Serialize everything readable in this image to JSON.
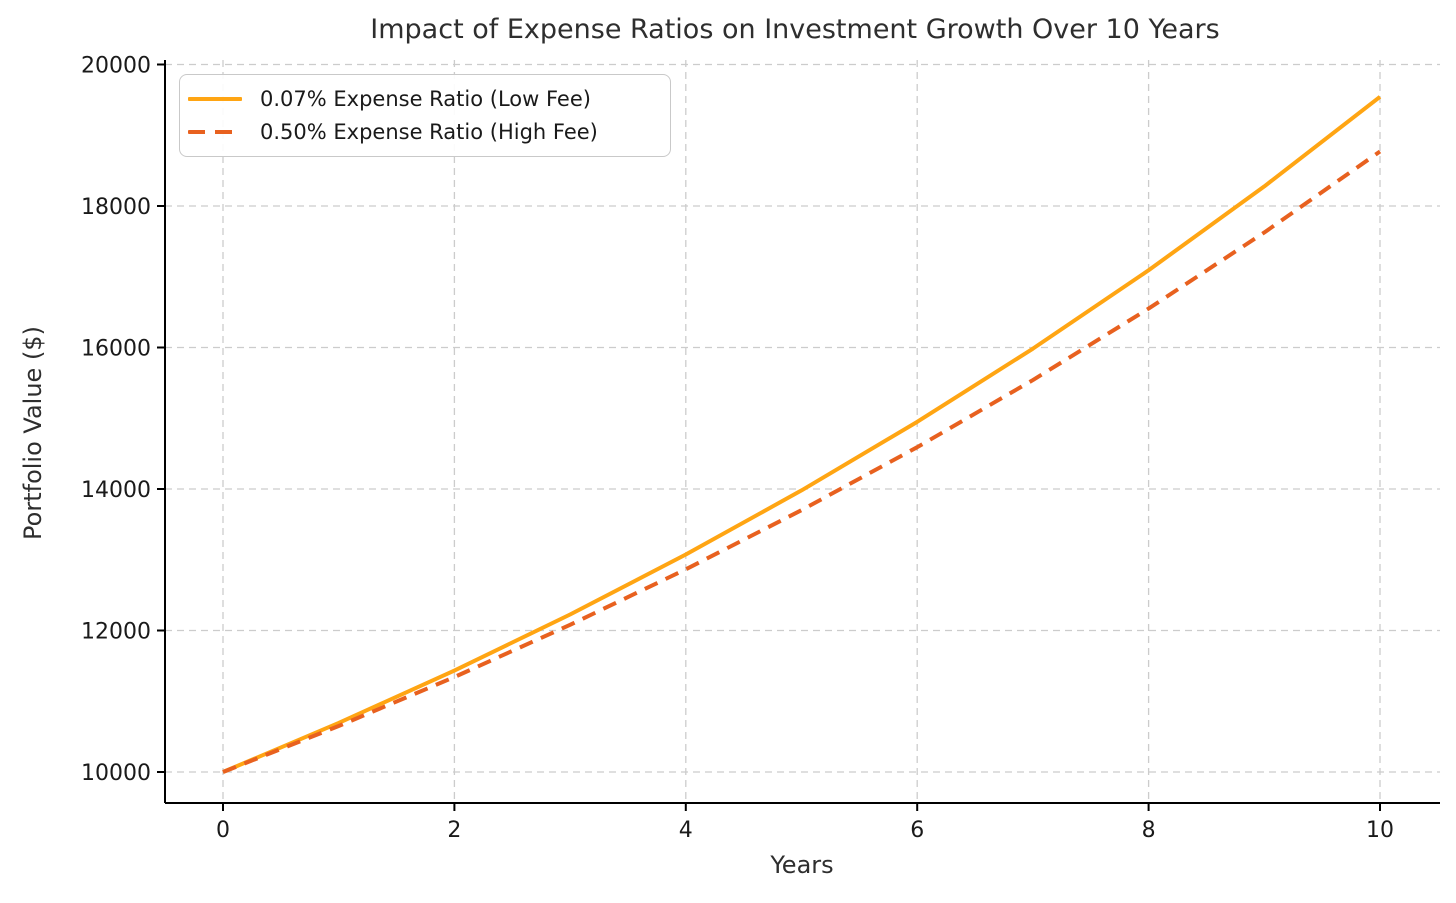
{
  "chart_data": {
    "type": "line",
    "title": "Impact of Expense Ratios on Investment Growth Over 10 Years",
    "xlabel": "Years",
    "ylabel": "Portfolio Value ($)",
    "x": [
      0,
      1,
      2,
      3,
      4,
      5,
      6,
      7,
      8,
      9,
      10
    ],
    "series": [
      {
        "name": "0.07% Expense Ratio (Low Fee)",
        "style": "solid",
        "color": "#FFA513",
        "values": [
          10000,
          10693,
          11434,
          12226,
          13074,
          13980,
          14949,
          15984,
          17092,
          18277,
          19543
        ]
      },
      {
        "name": "0.50% Expense Ratio (High Fee)",
        "style": "dashed",
        "color": "#E8611F",
        "values": [
          10000,
          10650,
          11342,
          12080,
          12865,
          13701,
          14591,
          15540,
          16550,
          17626,
          18771
        ]
      }
    ],
    "xticks": [
      0,
      2,
      4,
      6,
      8,
      10
    ],
    "yticks": [
      10000,
      12000,
      14000,
      16000,
      18000,
      20000
    ],
    "xlim": [
      -0.5,
      10.5
    ],
    "ylim": [
      9560,
      20060
    ],
    "grid": true,
    "grid_color": "#cccccc",
    "axis_color": "#000000",
    "tick_label_color": "#1a1a1a",
    "legend_position": "upper left"
  }
}
